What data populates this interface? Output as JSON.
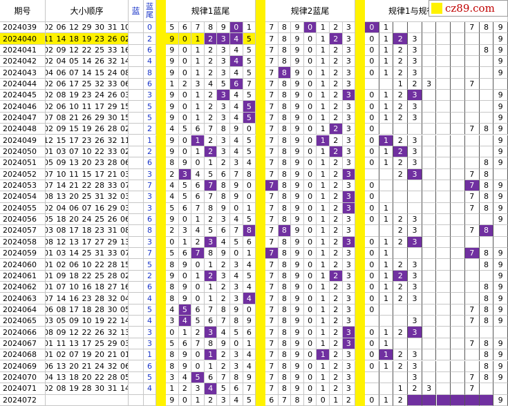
{
  "headers": {
    "period": "期号",
    "sorted": "大小顺序",
    "blue": "蓝",
    "blue_tail": "蓝尾",
    "rule1": "规律1蓝尾",
    "rule2": "规律2蓝尾",
    "rule12": "规律1与规律"
  },
  "badge": "cz89.com",
  "highlight_color": "#7030a0",
  "separator_color": "#fff200",
  "rows": [
    {
      "p": "2024039",
      "n": "02 06 12 29 30 31 10",
      "t": "0",
      "r1": [
        "5",
        "6",
        "7",
        "8",
        "9",
        "0",
        "1"
      ],
      "h1": [
        5
      ],
      "r2": [
        "7",
        "8",
        "9",
        "0",
        "1",
        "2",
        "3"
      ],
      "h2": [
        3
      ],
      "c": [
        "0",
        "1",
        "",
        "",
        "",
        "",
        "",
        "7",
        "8",
        "9"
      ],
      "hc": [
        0
      ]
    },
    {
      "p": "2024040",
      "n": "11 14 18 19 23 26 02",
      "t": "2",
      "r1": [
        "9",
        "0",
        "1",
        "2",
        "3",
        "4",
        "5"
      ],
      "h1": [
        3,
        4,
        5
      ],
      "r2": [
        "7",
        "8",
        "9",
        "0",
        "1",
        "2",
        "3"
      ],
      "h2": [
        5
      ],
      "c": [
        "0",
        "1",
        "2",
        "3",
        "",
        "",
        "",
        "",
        "",
        "9"
      ],
      "hc": [
        2
      ],
      "y": 1
    },
    {
      "p": "2024041",
      "n": "02 09 12 22 25 33 16",
      "t": "6",
      "r1": [
        "9",
        "0",
        "1",
        "2",
        "3",
        "4",
        "5"
      ],
      "h1": [],
      "r2": [
        "7",
        "8",
        "9",
        "0",
        "1",
        "2",
        "3"
      ],
      "h2": [],
      "c": [
        "0",
        "1",
        "2",
        "3",
        "",
        "",
        "",
        "",
        "8",
        "9"
      ],
      "hc": []
    },
    {
      "p": "2024042",
      "n": "02 04 05 14 26 32 14",
      "t": "4",
      "r1": [
        "9",
        "0",
        "1",
        "2",
        "3",
        "4",
        "5"
      ],
      "h1": [
        5
      ],
      "r2": [
        "7",
        "8",
        "9",
        "0",
        "1",
        "2",
        "3"
      ],
      "h2": [],
      "c": [
        "0",
        "1",
        "2",
        "3",
        "",
        "",
        "",
        "",
        "",
        "9"
      ],
      "hc": []
    },
    {
      "p": "2024043",
      "n": "04 06 07 14 15 24 08",
      "t": "8",
      "r1": [
        "9",
        "0",
        "1",
        "2",
        "3",
        "4",
        "5"
      ],
      "h1": [],
      "r2": [
        "7",
        "8",
        "9",
        "0",
        "1",
        "2",
        "3"
      ],
      "h2": [
        1
      ],
      "c": [
        "0",
        "1",
        "2",
        "3",
        "",
        "",
        "",
        "",
        "",
        "9"
      ],
      "hc": []
    },
    {
      "p": "2024044",
      "n": "02 06 17 25 32 33 06",
      "t": "6",
      "r1": [
        "1",
        "2",
        "3",
        "4",
        "5",
        "6",
        "7"
      ],
      "h1": [
        5
      ],
      "r2": [
        "7",
        "8",
        "9",
        "0",
        "1",
        "2",
        "3"
      ],
      "h2": [],
      "c": [
        "",
        "",
        "1",
        "2",
        "3",
        "",
        "",
        "7",
        "",
        ""
      ],
      "hc": []
    },
    {
      "p": "2024045",
      "n": "02 08 19 23 24 26 03",
      "t": "3",
      "r1": [
        "9",
        "0",
        "1",
        "2",
        "3",
        "4",
        "5"
      ],
      "h1": [
        4
      ],
      "r2": [
        "7",
        "8",
        "9",
        "0",
        "1",
        "2",
        "3"
      ],
      "h2": [
        6
      ],
      "c": [
        "0",
        "1",
        "2",
        "3",
        "",
        "",
        "",
        "",
        "",
        "9"
      ],
      "hc": [
        3
      ]
    },
    {
      "p": "2024046",
      "n": "02 06 10 11 17 29 15",
      "t": "5",
      "r1": [
        "9",
        "0",
        "1",
        "2",
        "3",
        "4",
        "5"
      ],
      "h1": [
        6
      ],
      "r2": [
        "7",
        "8",
        "9",
        "0",
        "1",
        "2",
        "3"
      ],
      "h2": [],
      "c": [
        "0",
        "1",
        "2",
        "3",
        "",
        "",
        "",
        "",
        "",
        "9"
      ],
      "hc": []
    },
    {
      "p": "2024047",
      "n": "07 08 21 26 29 30 15",
      "t": "5",
      "r1": [
        "9",
        "0",
        "1",
        "2",
        "3",
        "4",
        "5"
      ],
      "h1": [
        6
      ],
      "r2": [
        "7",
        "8",
        "9",
        "0",
        "1",
        "2",
        "3"
      ],
      "h2": [],
      "c": [
        "0",
        "1",
        "2",
        "3",
        "",
        "",
        "",
        "",
        "",
        "9"
      ],
      "hc": []
    },
    {
      "p": "2024048",
      "n": "02 09 15 19 26 28 02",
      "t": "2",
      "r1": [
        "4",
        "5",
        "6",
        "7",
        "8",
        "9",
        "0"
      ],
      "h1": [],
      "r2": [
        "7",
        "8",
        "9",
        "0",
        "1",
        "2",
        "3"
      ],
      "h2": [
        5
      ],
      "c": [
        "0",
        "",
        "",
        "",
        "",
        "",
        "",
        "7",
        "8",
        "9"
      ],
      "hc": []
    },
    {
      "p": "2024049",
      "n": "12 15 17 23 26 32 11",
      "t": "1",
      "r1": [
        "9",
        "0",
        "1",
        "2",
        "3",
        "4",
        "5"
      ],
      "h1": [
        2
      ],
      "r2": [
        "7",
        "8",
        "9",
        "0",
        "1",
        "2",
        "3"
      ],
      "h2": [
        4
      ],
      "c": [
        "0",
        "1",
        "2",
        "3",
        "",
        "",
        "",
        "",
        "",
        "9"
      ],
      "hc": [
        1
      ]
    },
    {
      "p": "2024050",
      "n": "01 03 07 10 22 33 02",
      "t": "2",
      "r1": [
        "9",
        "0",
        "1",
        "2",
        "3",
        "4",
        "5"
      ],
      "h1": [
        3
      ],
      "r2": [
        "7",
        "8",
        "9",
        "0",
        "1",
        "2",
        "3"
      ],
      "h2": [
        5
      ],
      "c": [
        "0",
        "1",
        "2",
        "3",
        "",
        "",
        "",
        "",
        "",
        "9"
      ],
      "hc": [
        2
      ]
    },
    {
      "p": "2024051",
      "n": "05 09 13 20 23 28 06",
      "t": "6",
      "r1": [
        "8",
        "9",
        "0",
        "1",
        "2",
        "3",
        "4"
      ],
      "h1": [],
      "r2": [
        "7",
        "8",
        "9",
        "0",
        "1",
        "2",
        "3"
      ],
      "h2": [],
      "c": [
        "0",
        "1",
        "2",
        "3",
        "",
        "",
        "",
        "",
        "8",
        "9"
      ],
      "hc": []
    },
    {
      "p": "2024052",
      "n": "07 10 11 15 17 21 03",
      "t": "3",
      "r1": [
        "2",
        "3",
        "4",
        "5",
        "6",
        "7",
        "8"
      ],
      "h1": [
        1
      ],
      "r2": [
        "7",
        "8",
        "9",
        "0",
        "1",
        "2",
        "3"
      ],
      "h2": [
        6
      ],
      "c": [
        "",
        "",
        "2",
        "3",
        "",
        "",
        "",
        "7",
        "8",
        ""
      ],
      "hc": [
        3
      ]
    },
    {
      "p": "2024053",
      "n": "07 14 21 22 28 33 07",
      "t": "7",
      "r1": [
        "4",
        "5",
        "6",
        "7",
        "8",
        "9",
        "0"
      ],
      "h1": [
        3
      ],
      "r2": [
        "7",
        "8",
        "9",
        "0",
        "1",
        "2",
        "3"
      ],
      "h2": [
        0
      ],
      "c": [
        "0",
        "",
        "",
        "",
        "",
        "",
        "",
        "7",
        "8",
        "9"
      ],
      "hc": [
        7
      ]
    },
    {
      "p": "2024054",
      "n": "08 13 20 25 31 32 03",
      "t": "3",
      "r1": [
        "4",
        "5",
        "6",
        "7",
        "8",
        "9",
        "0"
      ],
      "h1": [],
      "r2": [
        "7",
        "8",
        "9",
        "0",
        "1",
        "2",
        "3"
      ],
      "h2": [
        6
      ],
      "c": [
        "0",
        "",
        "",
        "",
        "",
        "",
        "",
        "7",
        "8",
        "9"
      ],
      "hc": []
    },
    {
      "p": "2024055",
      "n": "02 04 06 07 16 29 03",
      "t": "3",
      "r1": [
        "5",
        "6",
        "7",
        "8",
        "9",
        "0",
        "1"
      ],
      "h1": [],
      "r2": [
        "7",
        "8",
        "9",
        "0",
        "1",
        "2",
        "3"
      ],
      "h2": [
        6
      ],
      "c": [
        "0",
        "1",
        "",
        "",
        "",
        "",
        "",
        "7",
        "8",
        "9"
      ],
      "hc": []
    },
    {
      "p": "2024056",
      "n": "05 18 20 24 25 26 06",
      "t": "6",
      "r1": [
        "9",
        "0",
        "1",
        "2",
        "3",
        "4",
        "5"
      ],
      "h1": [],
      "r2": [
        "7",
        "8",
        "9",
        "0",
        "1",
        "2",
        "3"
      ],
      "h2": [],
      "c": [
        "0",
        "1",
        "2",
        "3",
        "",
        "",
        "",
        "",
        "",
        "9"
      ],
      "hc": []
    },
    {
      "p": "2024057",
      "n": "03 08 17 18 23 31 08",
      "t": "8",
      "r1": [
        "2",
        "3",
        "4",
        "5",
        "6",
        "7",
        "8"
      ],
      "h1": [
        6
      ],
      "r2": [
        "7",
        "8",
        "9",
        "0",
        "1",
        "2",
        "3"
      ],
      "h2": [
        1
      ],
      "c": [
        "",
        "",
        "2",
        "3",
        "",
        "",
        "",
        "7",
        "8",
        ""
      ],
      "hc": [
        8
      ]
    },
    {
      "p": "2024058",
      "n": "08 12 13 17 27 29 13",
      "t": "3",
      "r1": [
        "0",
        "1",
        "2",
        "3",
        "4",
        "5",
        "6"
      ],
      "h1": [
        3
      ],
      "r2": [
        "7",
        "8",
        "9",
        "0",
        "1",
        "2",
        "3"
      ],
      "h2": [
        6
      ],
      "c": [
        "0",
        "1",
        "2",
        "3",
        "",
        "",
        "",
        "",
        "",
        ""
      ],
      "hc": [
        3
      ]
    },
    {
      "p": "2024059",
      "n": "01 03 14 25 31 33 07",
      "t": "7",
      "r1": [
        "5",
        "6",
        "7",
        "8",
        "9",
        "0",
        "1"
      ],
      "h1": [
        2
      ],
      "r2": [
        "7",
        "8",
        "9",
        "0",
        "1",
        "2",
        "3"
      ],
      "h2": [
        0
      ],
      "c": [
        "0",
        "1",
        "",
        "",
        "",
        "",
        "",
        "7",
        "8",
        "9"
      ],
      "hc": [
        7
      ]
    },
    {
      "p": "2024060",
      "n": "01 02 06 10 22 28 15",
      "t": "5",
      "r1": [
        "8",
        "9",
        "0",
        "1",
        "2",
        "3",
        "4"
      ],
      "h1": [],
      "r2": [
        "7",
        "8",
        "9",
        "0",
        "1",
        "2",
        "3"
      ],
      "h2": [],
      "c": [
        "0",
        "1",
        "2",
        "3",
        "",
        "",
        "",
        "",
        "8",
        "9"
      ],
      "hc": []
    },
    {
      "p": "2024061",
      "n": "01 09 18 22 25 28 02",
      "t": "2",
      "r1": [
        "9",
        "0",
        "1",
        "2",
        "3",
        "4",
        "5"
      ],
      "h1": [
        3
      ],
      "r2": [
        "7",
        "8",
        "9",
        "0",
        "1",
        "2",
        "3"
      ],
      "h2": [
        5
      ],
      "c": [
        "0",
        "1",
        "2",
        "3",
        "",
        "",
        "",
        "",
        "",
        "9"
      ],
      "hc": [
        2
      ]
    },
    {
      "p": "2024062",
      "n": "01 07 10 16 18 27 16",
      "t": "6",
      "r1": [
        "8",
        "9",
        "0",
        "1",
        "2",
        "3",
        "4"
      ],
      "h1": [],
      "r2": [
        "7",
        "8",
        "9",
        "0",
        "1",
        "2",
        "3"
      ],
      "h2": [],
      "c": [
        "0",
        "1",
        "2",
        "3",
        "",
        "",
        "",
        "",
        "8",
        "9"
      ],
      "hc": []
    },
    {
      "p": "2024063",
      "n": "07 14 16 23 28 32 04",
      "t": "4",
      "r1": [
        "8",
        "9",
        "0",
        "1",
        "2",
        "3",
        "4"
      ],
      "h1": [
        6
      ],
      "r2": [
        "7",
        "8",
        "9",
        "0",
        "1",
        "2",
        "3"
      ],
      "h2": [],
      "c": [
        "0",
        "1",
        "2",
        "3",
        "",
        "",
        "",
        "",
        "8",
        "9"
      ],
      "hc": []
    },
    {
      "p": "2024064",
      "n": "06 08 17 18 28 30 05",
      "t": "5",
      "r1": [
        "4",
        "5",
        "6",
        "7",
        "8",
        "9",
        "0"
      ],
      "h1": [
        1
      ],
      "r2": [
        "7",
        "8",
        "9",
        "0",
        "1",
        "2",
        "3"
      ],
      "h2": [],
      "c": [
        "0",
        "",
        "",
        "",
        "",
        "",
        "",
        "7",
        "8",
        "9"
      ],
      "hc": []
    },
    {
      "p": "2024065",
      "n": "03 05 09 10 19 22 14",
      "t": "4",
      "r1": [
        "3",
        "4",
        "5",
        "6",
        "7",
        "8",
        "9"
      ],
      "h1": [
        1
      ],
      "r2": [
        "7",
        "8",
        "9",
        "0",
        "1",
        "2",
        "3"
      ],
      "h2": [],
      "c": [
        "",
        "",
        "",
        "3",
        "",
        "",
        "",
        "7",
        "8",
        "9"
      ],
      "hc": []
    },
    {
      "p": "2024066",
      "n": "08 09 12 22 26 32 13",
      "t": "3",
      "r1": [
        "0",
        "1",
        "2",
        "3",
        "4",
        "5",
        "6"
      ],
      "h1": [
        3
      ],
      "r2": [
        "7",
        "8",
        "9",
        "0",
        "1",
        "2",
        "3"
      ],
      "h2": [
        6
      ],
      "c": [
        "0",
        "1",
        "2",
        "3",
        "",
        "",
        "",
        "",
        "",
        ""
      ],
      "hc": [
        3
      ]
    },
    {
      "p": "2024067",
      "n": "01 11 13 17 25 29 03",
      "t": "3",
      "r1": [
        "5",
        "6",
        "7",
        "8",
        "9",
        "0",
        "1"
      ],
      "h1": [],
      "r2": [
        "7",
        "8",
        "9",
        "0",
        "1",
        "2",
        "3"
      ],
      "h2": [
        6
      ],
      "c": [
        "0",
        "1",
        "",
        "",
        "",
        "",
        "",
        "7",
        "8",
        "9"
      ],
      "hc": []
    },
    {
      "p": "2024068",
      "n": "01 02 07 19 20 21 01",
      "t": "1",
      "r1": [
        "8",
        "9",
        "0",
        "1",
        "2",
        "3",
        "4"
      ],
      "h1": [
        3
      ],
      "r2": [
        "7",
        "8",
        "9",
        "0",
        "1",
        "2",
        "3"
      ],
      "h2": [
        4
      ],
      "c": [
        "0",
        "1",
        "2",
        "3",
        "",
        "",
        "",
        "",
        "8",
        "9"
      ],
      "hc": [
        1
      ]
    },
    {
      "p": "2024069",
      "n": "06 13 20 21 24 32 06",
      "t": "6",
      "r1": [
        "8",
        "9",
        "0",
        "1",
        "2",
        "3",
        "4"
      ],
      "h1": [],
      "r2": [
        "7",
        "8",
        "9",
        "0",
        "1",
        "2",
        "3"
      ],
      "h2": [],
      "c": [
        "0",
        "1",
        "2",
        "3",
        "",
        "",
        "",
        "",
        "8",
        "9"
      ],
      "hc": []
    },
    {
      "p": "2024070",
      "n": "04 13 18 20 22 28 05",
      "t": "5",
      "r1": [
        "3",
        "4",
        "5",
        "6",
        "7",
        "8",
        "9"
      ],
      "h1": [
        2
      ],
      "r2": [
        "7",
        "8",
        "9",
        "0",
        "1",
        "2",
        "3"
      ],
      "h2": [],
      "c": [
        "",
        "",
        "",
        "3",
        "",
        "",
        "",
        "7",
        "8",
        "9"
      ],
      "hc": []
    },
    {
      "p": "2024071",
      "n": "02 08 19 28 30 31 14",
      "t": "4",
      "r1": [
        "1",
        "2",
        "3",
        "4",
        "5",
        "6",
        "7"
      ],
      "h1": [
        3
      ],
      "r2": [
        "7",
        "8",
        "9",
        "0",
        "1",
        "2",
        "3"
      ],
      "h2": [],
      "c": [
        "",
        "",
        "1",
        "2",
        "3",
        "",
        "",
        "7",
        "",
        ""
      ],
      "hc": []
    },
    {
      "p": "2024072",
      "n": "",
      "t": "",
      "r1": [
        "9",
        "0",
        "1",
        "2",
        "3",
        "4",
        "5"
      ],
      "h1": [],
      "r2": [
        "6",
        "7",
        "8",
        "9",
        "0",
        "1",
        "2"
      ],
      "h2": [],
      "c": [
        "0",
        "1",
        "2",
        "",
        "",
        "",
        "",
        "",
        "",
        "9"
      ],
      "hc": [
        3,
        4,
        5,
        6,
        7,
        8
      ]
    }
  ]
}
